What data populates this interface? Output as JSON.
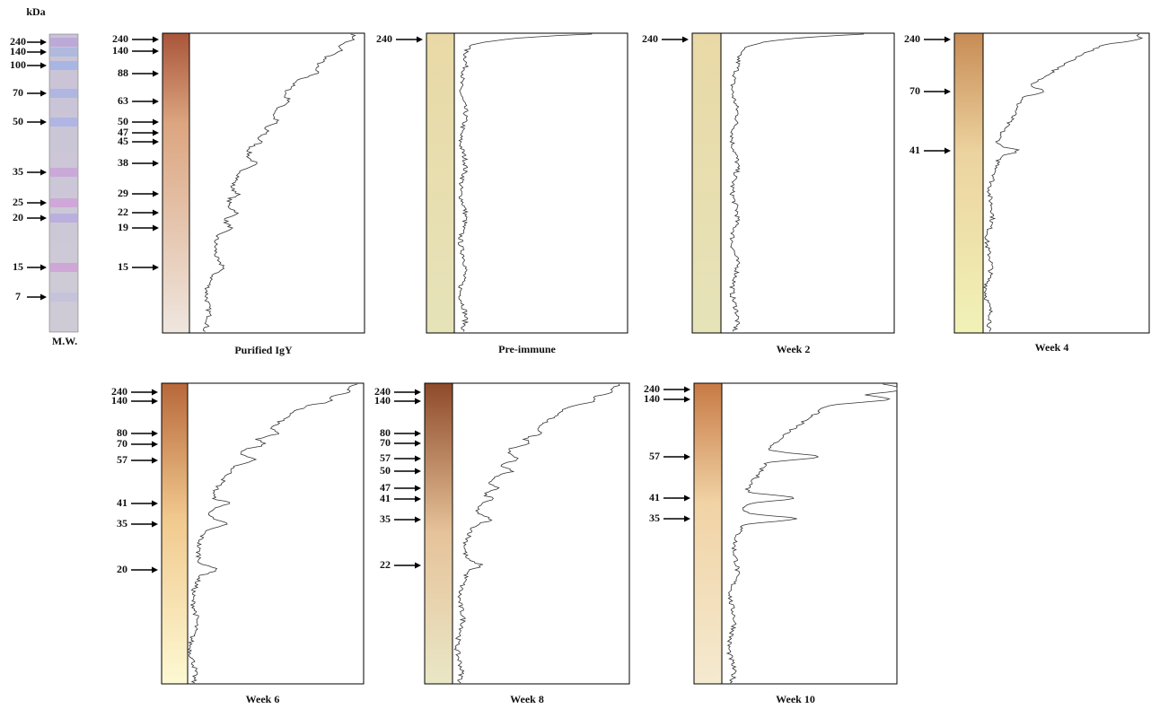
{
  "unit_label": "kDa",
  "marker_lane": {
    "label": "M.W.",
    "markers": [
      240,
      140,
      100,
      70,
      50,
      35,
      25,
      20,
      15,
      7
    ]
  },
  "panels": [
    {
      "label": "Purified IgY",
      "markers": [
        240,
        140,
        88,
        63,
        50,
        47,
        45,
        38,
        29,
        22,
        19,
        15
      ]
    },
    {
      "label": "Pre-immune",
      "markers": [
        240
      ]
    },
    {
      "label": "Week 2",
      "markers": [
        240
      ]
    },
    {
      "label": "Week 4",
      "markers": [
        240,
        70,
        41
      ]
    },
    {
      "label": "Week 6",
      "markers": [
        240,
        140,
        80,
        70,
        57,
        41,
        35,
        20
      ]
    },
    {
      "label": "Week 8",
      "markers": [
        240,
        140,
        80,
        70,
        57,
        50,
        47,
        41,
        35,
        22
      ]
    },
    {
      "label": "Week 10",
      "markers": [
        240,
        140,
        57,
        41,
        35
      ]
    }
  ]
}
